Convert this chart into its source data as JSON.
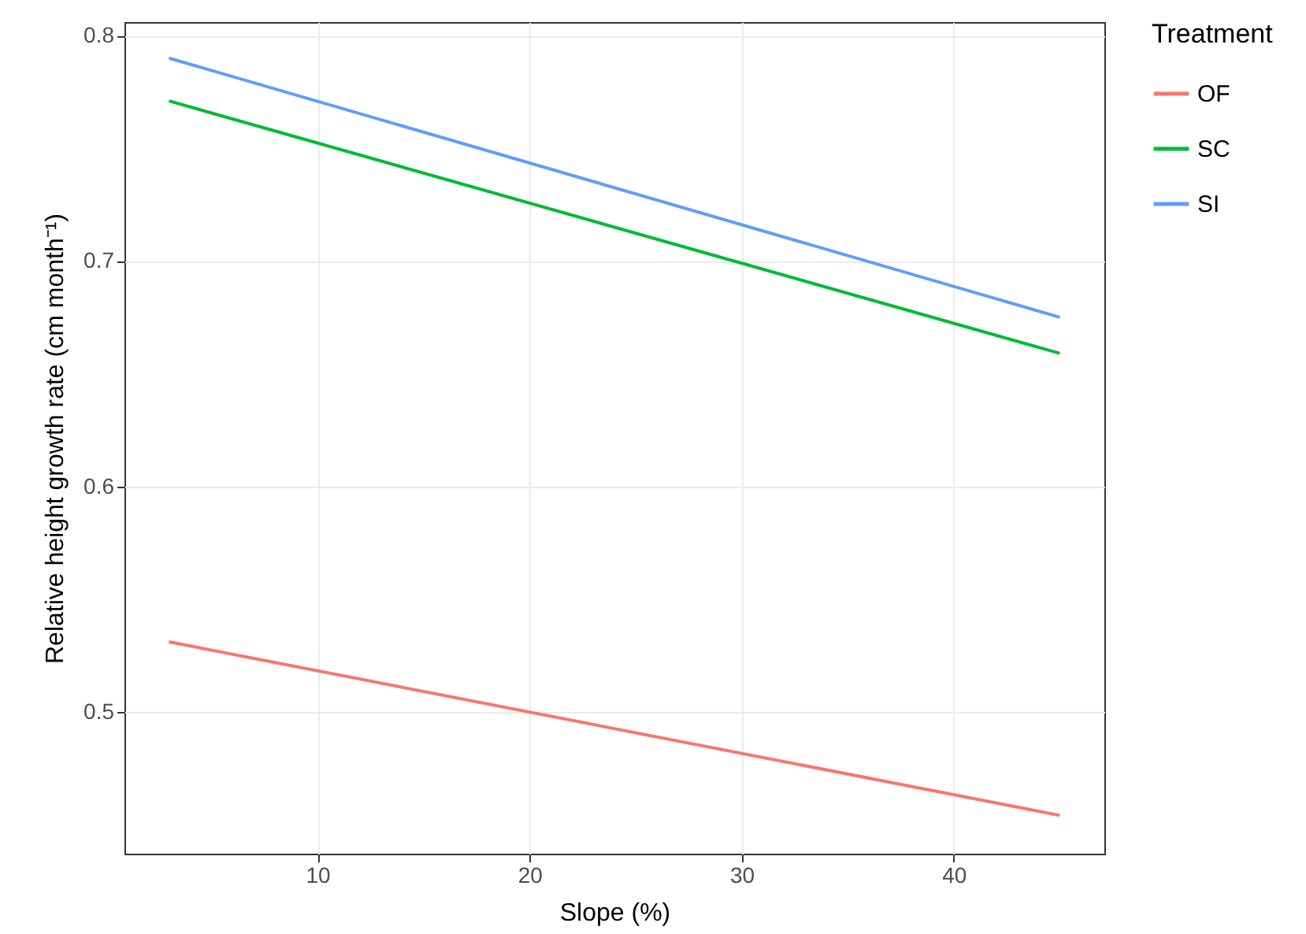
{
  "chart_data": {
    "type": "line",
    "xlabel": "Slope (%)",
    "ylabel": "Relative height growth rate  (cm month⁻¹)",
    "legend_title": "Treatment",
    "x": [
      3,
      45
    ],
    "series": [
      {
        "name": "OF",
        "color": "#f8766d",
        "values": [
          0.531,
          0.454
        ]
      },
      {
        "name": "SC",
        "color": "#00ba38",
        "values": [
          0.771,
          0.659
        ]
      },
      {
        "name": "SI",
        "color": "#619cff",
        "values": [
          0.79,
          0.675
        ]
      }
    ],
    "xlim": [
      0.9,
      47.1
    ],
    "xticks": [
      10,
      20,
      30,
      40
    ],
    "ylim": [
      0.437,
      0.806
    ],
    "yticks": [
      0.5,
      0.6,
      0.7,
      0.8
    ],
    "grid": true,
    "legend": "right",
    "line_style": "solid",
    "marker": "none"
  }
}
